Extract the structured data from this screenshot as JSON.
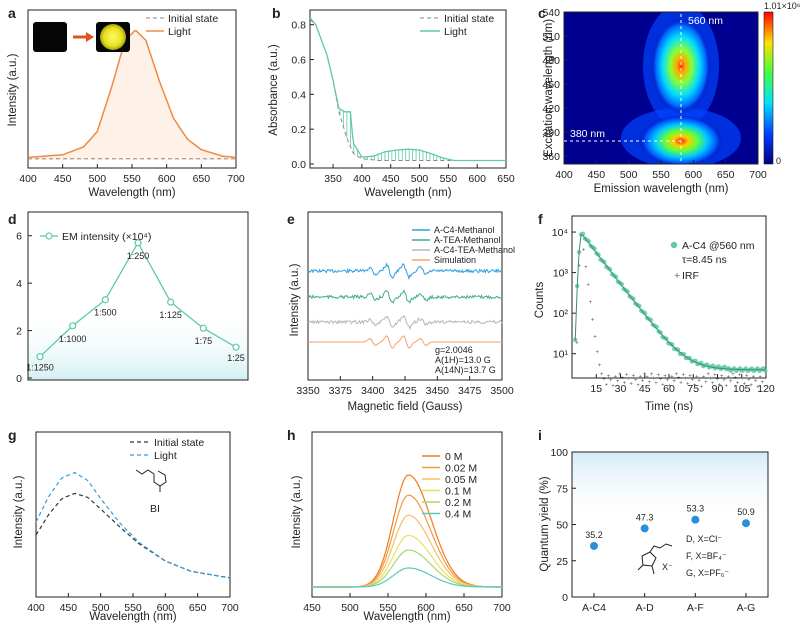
{
  "panels": {
    "a": {
      "label": "a",
      "xlabel": "Wavelength (nm)",
      "ylabel": "Intensity (a.u.)",
      "xticks": [
        "400",
        "450",
        "500",
        "550",
        "600",
        "650",
        "700"
      ],
      "legend": [
        "Initial state",
        "Light"
      ]
    },
    "b": {
      "label": "b",
      "xlabel": "Wavelength (nm)",
      "ylabel": "Absorbance (a.u.)",
      "xticks": [
        "350",
        "400",
        "450",
        "500",
        "550",
        "600",
        "650"
      ],
      "yticks": [
        "0.0",
        "0.2",
        "0.4",
        "0.6",
        "0.8"
      ],
      "legend": [
        "Initial state",
        "Light"
      ]
    },
    "c": {
      "label": "c",
      "xlabel": "Emission wavelength (nm)",
      "ylabel": "Excitation wavelength (nm)",
      "xticks": [
        "400",
        "450",
        "500",
        "550",
        "600",
        "650",
        "700"
      ],
      "yticks": [
        "540",
        "510",
        "480",
        "450",
        "420",
        "390",
        "360"
      ],
      "ann_em": "560 nm",
      "ann_ex": "380 nm",
      "cbar_max": "1.01×10⁶",
      "cbar_min": "0"
    },
    "d": {
      "label": "d",
      "legend": "EM intensity (×10⁴)",
      "yticks": [
        "0",
        "2",
        "4",
        "6"
      ]
    },
    "e": {
      "label": "e",
      "xlabel": "Magnetic field (Gauss)",
      "ylabel": "Intensity (a.u.)",
      "xticks": [
        "3350",
        "3375",
        "3400",
        "3425",
        "3450",
        "3475",
        "3500"
      ],
      "legend": [
        "A-C4-Methanol",
        "A-TEA-Methanol",
        "A-C4-TEA-Methanol",
        "Simulation"
      ],
      "params": [
        "g=2.0046",
        "A(1H)=13.0 G",
        "A(14N)=13.7 G"
      ]
    },
    "f": {
      "label": "f",
      "xlabel": "Time (ns)",
      "ylabel": "Counts",
      "xticks": [
        "15",
        "30",
        "45",
        "60",
        "75",
        "90",
        "105",
        "120"
      ],
      "yticks": [
        "10⁴",
        "10³",
        "10²",
        "10¹"
      ],
      "legend": [
        "A-C4 @560 nm",
        "τ=8.45 ns",
        "IRF"
      ]
    },
    "g": {
      "label": "g",
      "xlabel": "Wavelength (nm)",
      "ylabel": "Intensity (a.u.)",
      "xticks": [
        "400",
        "450",
        "500",
        "550",
        "600",
        "650",
        "700"
      ],
      "legend": [
        "Initial state",
        "Light"
      ],
      "molecule": "BI"
    },
    "h": {
      "label": "h",
      "xlabel": "Wavelength (nm)",
      "ylabel": "Intensity (a.u.)",
      "xticks": [
        "450",
        "500",
        "550",
        "600",
        "650",
        "700"
      ],
      "legend": [
        "0 M",
        "0.02 M",
        "0.05 M",
        "0.1 M",
        "0.2 M",
        "0.4 M"
      ]
    },
    "i": {
      "label": "i",
      "ylabel": "Quantum yield (%)",
      "yticks": [
        "0",
        "25",
        "50",
        "75",
        "100"
      ],
      "anions": [
        "D, X=Cl⁻",
        "F, X=BF₄⁻",
        "G, X=PF₆⁻"
      ],
      "counterion": "X⁻"
    }
  },
  "colors": {
    "orange": "#f08a40",
    "teal": "#5fc9a8",
    "gray": "#888888",
    "blue": "#2f9fe0",
    "dblue": "#2a8fd8",
    "green": "#3fae8a",
    "lgray": "#b8b8b8",
    "sim": "#f0a070",
    "navy": "#1a2a8c"
  },
  "chart_data": [
    {
      "type": "line",
      "id": "a",
      "xlim": [
        400,
        700
      ],
      "series": [
        {
          "name": "Initial state",
          "x": [
            400,
            700
          ],
          "y": [
            0.01,
            0.01
          ]
        },
        {
          "name": "Light",
          "x": [
            400,
            450,
            480,
            500,
            520,
            540,
            555,
            570,
            590,
            610,
            630,
            650,
            680,
            700
          ],
          "y": [
            0.02,
            0.04,
            0.1,
            0.22,
            0.55,
            0.92,
            1.0,
            0.92,
            0.6,
            0.32,
            0.16,
            0.08,
            0.03,
            0.02
          ]
        }
      ]
    },
    {
      "type": "line",
      "id": "b",
      "xlim": [
        310,
        650
      ],
      "ylim": [
        0,
        0.85
      ],
      "series": [
        {
          "name": "Initial state",
          "x": [
            310,
            320,
            340,
            350,
            360,
            375,
            385,
            400,
            430,
            460,
            500,
            550,
            650
          ],
          "y": [
            0.83,
            0.8,
            0.62,
            0.48,
            0.3,
            0.14,
            0.06,
            0.03,
            0.02,
            0.02,
            0.02,
            0.02,
            0.02
          ]
        },
        {
          "name": "Light",
          "x": [
            310,
            320,
            340,
            350,
            360,
            370,
            380,
            385,
            400,
            420,
            440,
            460,
            480,
            500,
            520,
            540,
            560,
            600,
            650
          ],
          "y": [
            0.84,
            0.8,
            0.62,
            0.48,
            0.32,
            0.3,
            0.3,
            0.12,
            0.04,
            0.045,
            0.07,
            0.08,
            0.085,
            0.08,
            0.06,
            0.035,
            0.02,
            0.02,
            0.02
          ]
        }
      ]
    },
    {
      "type": "heatmap",
      "id": "c",
      "xlim": [
        400,
        700
      ],
      "ylim": [
        360,
        540
      ],
      "peaks": [
        {
          "em": 560,
          "ex": 380,
          "intensity": 1010000.0
        },
        {
          "em": 560,
          "ex": 475,
          "intensity": 650000.0
        }
      ]
    },
    {
      "type": "line",
      "id": "d",
      "ylim": [
        0,
        7
      ],
      "categories": [
        "1:1250",
        "1:1000",
        "1:500",
        "1:250",
        "1:125",
        "1:75",
        "1:25"
      ],
      "values": [
        0.9,
        2.2,
        3.3,
        5.7,
        3.2,
        2.1,
        1.3
      ]
    },
    {
      "type": "line",
      "id": "e",
      "xlim": [
        3350,
        3500
      ],
      "series": [
        {
          "name": "A-C4-Methanol"
        },
        {
          "name": "A-TEA-Methanol"
        },
        {
          "name": "A-C4-TEA-Methanol"
        },
        {
          "name": "Simulation"
        }
      ]
    },
    {
      "type": "scatter",
      "id": "f",
      "xlim": [
        0,
        120
      ],
      "ylim": [
        1,
        10000
      ],
      "yscale": "log",
      "series": [
        {
          "name": "A-C4 @560 nm",
          "tau_ns": 8.45
        },
        {
          "name": "IRF"
        }
      ]
    },
    {
      "type": "line",
      "id": "g",
      "xlim": [
        400,
        700
      ],
      "series": [
        {
          "name": "Initial state",
          "x": [
            400,
            420,
            440,
            460,
            480,
            500,
            530,
            560,
            600,
            640,
            700
          ],
          "y": [
            0.4,
            0.56,
            0.68,
            0.72,
            0.69,
            0.6,
            0.46,
            0.33,
            0.2,
            0.12,
            0.07
          ]
        },
        {
          "name": "Light",
          "x": [
            400,
            420,
            440,
            460,
            480,
            500,
            530,
            560,
            600,
            640,
            700
          ],
          "y": [
            0.5,
            0.7,
            0.84,
            0.88,
            0.82,
            0.68,
            0.49,
            0.34,
            0.2,
            0.12,
            0.07
          ]
        }
      ]
    },
    {
      "type": "line",
      "id": "h",
      "xlim": [
        450,
        700
      ],
      "series": [
        {
          "name": "0 M",
          "peak": 1.0
        },
        {
          "name": "0.02 M",
          "peak": 0.82
        },
        {
          "name": "0.05 M",
          "peak": 0.64
        },
        {
          "name": "0.1 M",
          "peak": 0.46
        },
        {
          "name": "0.2 M",
          "peak": 0.33
        },
        {
          "name": "0.4 M",
          "peak": 0.17
        }
      ]
    },
    {
      "type": "scatter",
      "id": "i",
      "ylim": [
        0,
        100
      ],
      "categories": [
        "A-C4",
        "A-D",
        "A-F",
        "A-G"
      ],
      "values": [
        35.2,
        47.3,
        53.3,
        50.9
      ]
    }
  ]
}
